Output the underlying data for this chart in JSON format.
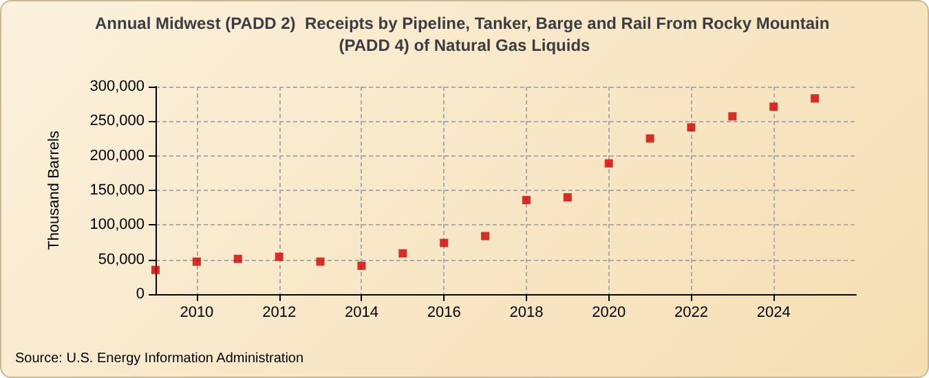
{
  "chart_data": {
    "type": "scatter",
    "title": "Annual Midwest (PADD 2)  Receipts by Pipeline, Tanker, Barge and Rail From Rocky Mountain (PADD 4) of Natural Gas Liquids",
    "ylabel": "Thousand Barrels",
    "annotations": [
      "Source: U.S. Energy Information Administration"
    ],
    "x": [
      2009,
      2010,
      2011,
      2012,
      2013,
      2014,
      2015,
      2016,
      2017,
      2018,
      2019,
      2020,
      2021,
      2022,
      2023,
      2024,
      2025
    ],
    "series": [
      {
        "color": "#cc0000",
        "values": [
          35000,
          47000,
          51000,
          54000,
          47000,
          41000,
          59000,
          74000,
          84000,
          136000,
          140000,
          189000,
          225000,
          241000,
          257000,
          271000,
          283000
        ]
      }
    ],
    "xlim": [
      2009,
      2026
    ],
    "xticks": [
      2010,
      2012,
      2014,
      2016,
      2018,
      2020,
      2022,
      2024
    ],
    "ylim": [
      0,
      300000
    ],
    "yticks": [
      0,
      {
        "value": 50000,
        "label": "50,000"
      },
      {
        "value": 100000,
        "label": "100,000"
      },
      {
        "value": 150000,
        "label": "150,000"
      },
      {
        "value": 200000,
        "label": "200,000"
      },
      {
        "value": 250000,
        "label": "250,000"
      },
      {
        "value": 300000,
        "label": "300,000"
      }
    ],
    "grid": true,
    "marker": "square"
  }
}
